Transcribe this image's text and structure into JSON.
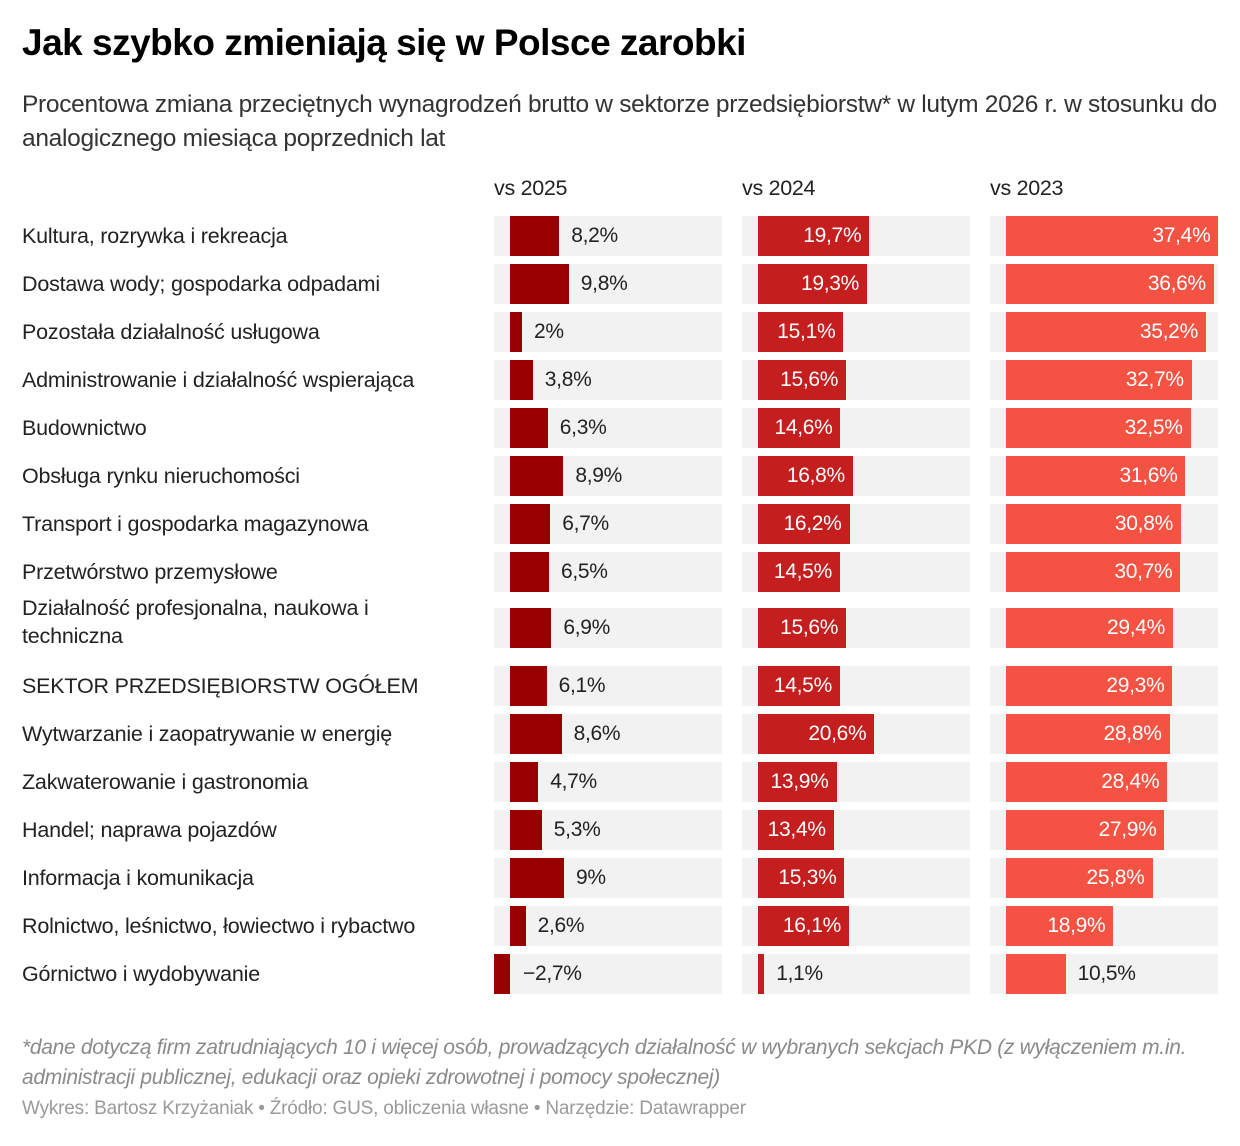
{
  "title": "Jak szybko zmieniają się w Polsce zarobki",
  "subtitle": "Procentowa zmiana przeciętnych wynagrodzeń brutto w sektorze przedsiębiorstw* w lutym 2026 r. w stosunku do analogicznego miesiąca poprzednich lat",
  "note": "*dane dotyczą firm zatrudniających 10 i więcej osób, prowadzących działalność w wybranych sekcjach PKD (z wyłączeniem m.in. administracji publicznej, edukacji oraz opieki zdrowotnej i pomocy społecznej)",
  "credits": "Wykres: Bartosz Krzyżaniak • Źródło: GUS, obliczenia własne • Narzędzie: Datawrapper",
  "chart_data": {
    "type": "bar",
    "orientation": "horizontal",
    "layout": "small-multiples",
    "title": "Jak szybko zmieniają się w Polsce zarobki",
    "subtitle": "Procentowa zmiana przeciętnych wynagrodzeń brutto w sektorze przedsiębiorstw* w lutym 2026 r. w stosunku do analogicznego miesiąca poprzednich lat",
    "unit": "%",
    "decimal_separator": ",",
    "categories": [
      "Kultura, rozrywka i rekreacja",
      "Dostawa wody; gospodarka odpadami",
      "Pozostała działalność usługowa",
      "Administrowanie i działalność wspierająca",
      "Budownictwo",
      "Obsługa rynku nieruchomości",
      "Transport i gospodarka magazynowa",
      "Przetwórstwo przemysłowe",
      "Działalność profesjonalna, naukowa i techniczna",
      "SEKTOR PRZEDSIĘBIORSTW OGÓŁEM",
      "Wytwarzanie i zaopatrywanie w energię",
      "Zakwaterowanie i gastronomia",
      "Handel; naprawa pojazdów",
      "Informacja i komunikacja",
      "Rolnictwo, leśnictwo, łowiectwo i rybactwo",
      "Górnictwo i wydobywanie"
    ],
    "series": [
      {
        "name": "vs 2025",
        "color": "#990000",
        "values": [
          8.2,
          9.8,
          2,
          3.8,
          6.3,
          8.9,
          6.7,
          6.5,
          6.9,
          6.1,
          8.6,
          4.7,
          5.3,
          9,
          2.6,
          -2.7
        ],
        "labels": [
          "8,2%",
          "9,8%",
          "2%",
          "3,8%",
          "6,3%",
          "8,9%",
          "6,7%",
          "6,5%",
          "6,9%",
          "6,1%",
          "8,6%",
          "4,7%",
          "5,3%",
          "9%",
          "2,6%",
          "−2,7%"
        ]
      },
      {
        "name": "vs 2024",
        "color": "#c41e1e",
        "values": [
          19.7,
          19.3,
          15.1,
          15.6,
          14.6,
          16.8,
          16.2,
          14.5,
          15.6,
          14.5,
          20.6,
          13.9,
          13.4,
          15.3,
          16.1,
          1.1
        ],
        "labels": [
          "19,7%",
          "19,3%",
          "15,1%",
          "15,6%",
          "14,6%",
          "16,8%",
          "16,2%",
          "14,5%",
          "15,6%",
          "14,5%",
          "20,6%",
          "13,9%",
          "13,4%",
          "15,3%",
          "16,1%",
          "1,1%"
        ]
      },
      {
        "name": "vs 2023",
        "color": "#f45242",
        "values": [
          37.4,
          36.6,
          35.2,
          32.7,
          32.5,
          31.6,
          30.8,
          30.7,
          29.4,
          29.3,
          28.8,
          28.4,
          27.9,
          25.8,
          18.9,
          10.5
        ],
        "labels": [
          "37,4%",
          "36,6%",
          "35,2%",
          "32,7%",
          "32,5%",
          "31,6%",
          "30,8%",
          "30,7%",
          "29,4%",
          "29,3%",
          "28,8%",
          "28,4%",
          "27,9%",
          "25,8%",
          "18,9%",
          "10,5%"
        ]
      }
    ],
    "track_color": "#f2f2f2",
    "gridlines": false,
    "legend": "none"
  }
}
